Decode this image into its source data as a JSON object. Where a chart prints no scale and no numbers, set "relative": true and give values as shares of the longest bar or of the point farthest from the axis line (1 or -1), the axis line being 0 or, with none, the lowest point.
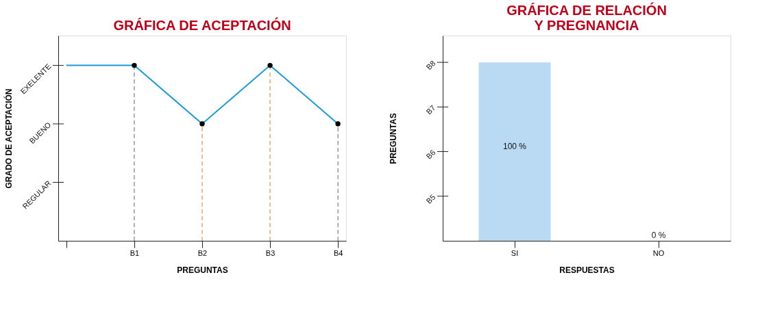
{
  "chart_data": [
    {
      "type": "line",
      "title": "GRÁFICA DE ACEPTACIÓN",
      "xlabel": "PREGUNTAS",
      "ylabel": "GRADO DE ACEPTACIÓN",
      "categories": [
        null,
        "B1",
        "B2",
        "B3",
        "B4"
      ],
      "series": [
        {
          "color": "#1a9ad6",
          "values": [
            1,
            1,
            0.667,
            1,
            0.667
          ]
        }
      ],
      "relative": true,
      "annotations": [
        "REGULAR",
        "BUENO",
        "EXELENTE"
      ],
      "marker": "circle",
      "grid": false,
      "ref_lines": [
        {
          "axis": "x",
          "value": "B1",
          "color": "#666666",
          "line_style": "dashed"
        },
        {
          "axis": "x",
          "value": "B2",
          "color": "#e07b39",
          "line_style": "dashed"
        },
        {
          "axis": "x",
          "value": "B3",
          "color": "#e07b39",
          "line_style": "dashed"
        },
        {
          "axis": "x",
          "value": "B4",
          "color": "#666666",
          "line_style": "dashed"
        }
      ]
    },
    {
      "type": "bar",
      "title": "GRÁFICA DE RELACIÓN\nY PREGNANCIA",
      "xlabel": "RESPUESTAS",
      "ylabel": "PREGUNTAS",
      "categories": [
        "SI",
        "NO"
      ],
      "values": [
        100,
        0
      ],
      "colors": [
        "#bad9f2",
        "#bad9f2"
      ],
      "value_labels": [
        "100 %",
        "0 %"
      ],
      "ylim": [
        0,
        115
      ],
      "annotations": [
        "B5",
        "B6",
        "B7",
        "B8"
      ],
      "grid": false
    }
  ]
}
